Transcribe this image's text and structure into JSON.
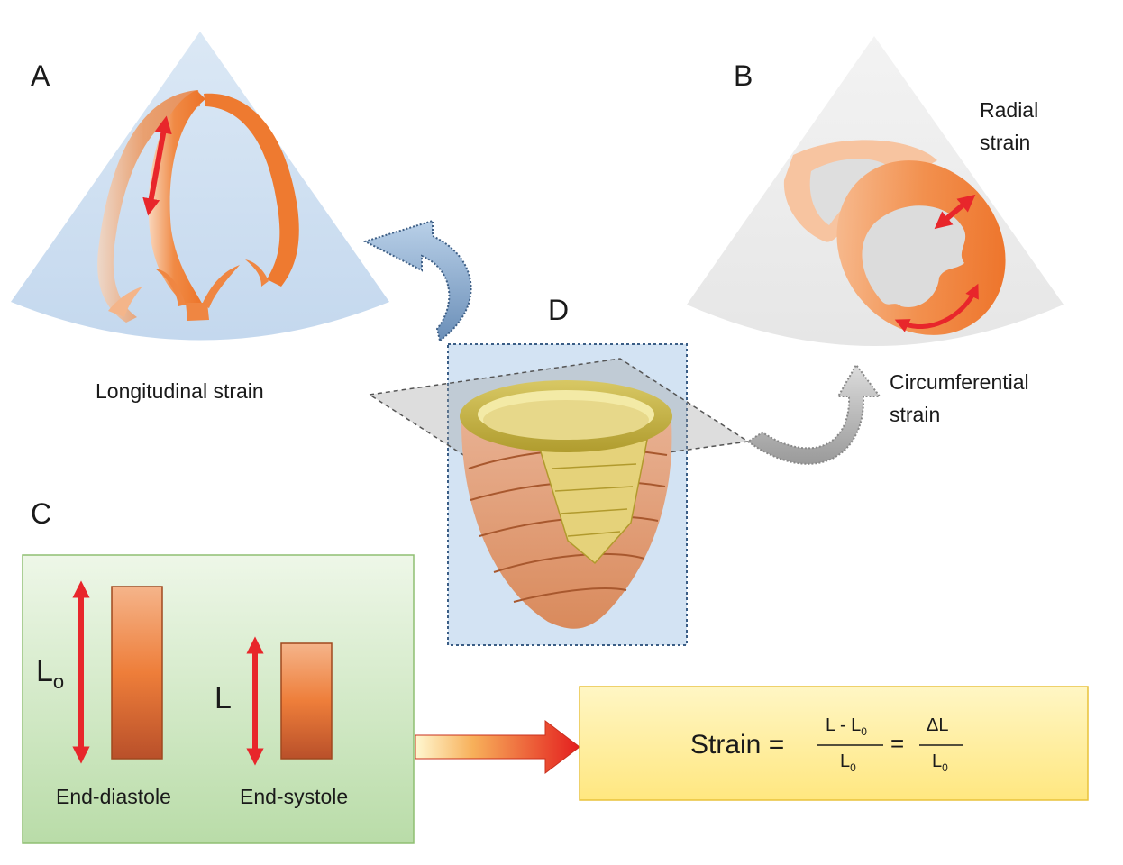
{
  "panels": {
    "a": {
      "letter": "A",
      "caption": "Longitudinal strain"
    },
    "b": {
      "letter": "B",
      "caption_radial_1": "Radial",
      "caption_radial_2": "strain",
      "caption_circ_1": "Circumferential",
      "caption_circ_2": "strain"
    },
    "c": {
      "letter": "C",
      "length_initial": "L",
      "length_initial_sub": "o",
      "length_final": "L",
      "phase_diastole": "End-diastole",
      "phase_systole": "End-systole"
    },
    "d": {
      "letter": "D"
    }
  },
  "formula": {
    "lhs": "Strain =",
    "num1": "L - L",
    "num1_sub": "0",
    "den1": "L",
    "den1_sub": "0",
    "eq": "=",
    "num2": "ΔL",
    "den2": "L",
    "den2_sub": "0"
  },
  "colors": {
    "orange": "#f07a2e",
    "red_arrow": "#e8262b",
    "blue_fan": "#cfe0f1",
    "grey_fan": "#ececec",
    "green_panel": "#c7e4b9",
    "yellow_panel": "#fff0a0",
    "heart_gold": "#c9b74a"
  },
  "icons": {
    "a": "apical-four-chamber-icon",
    "b": "short-axis-ring-icon",
    "d": "heart-icon"
  }
}
